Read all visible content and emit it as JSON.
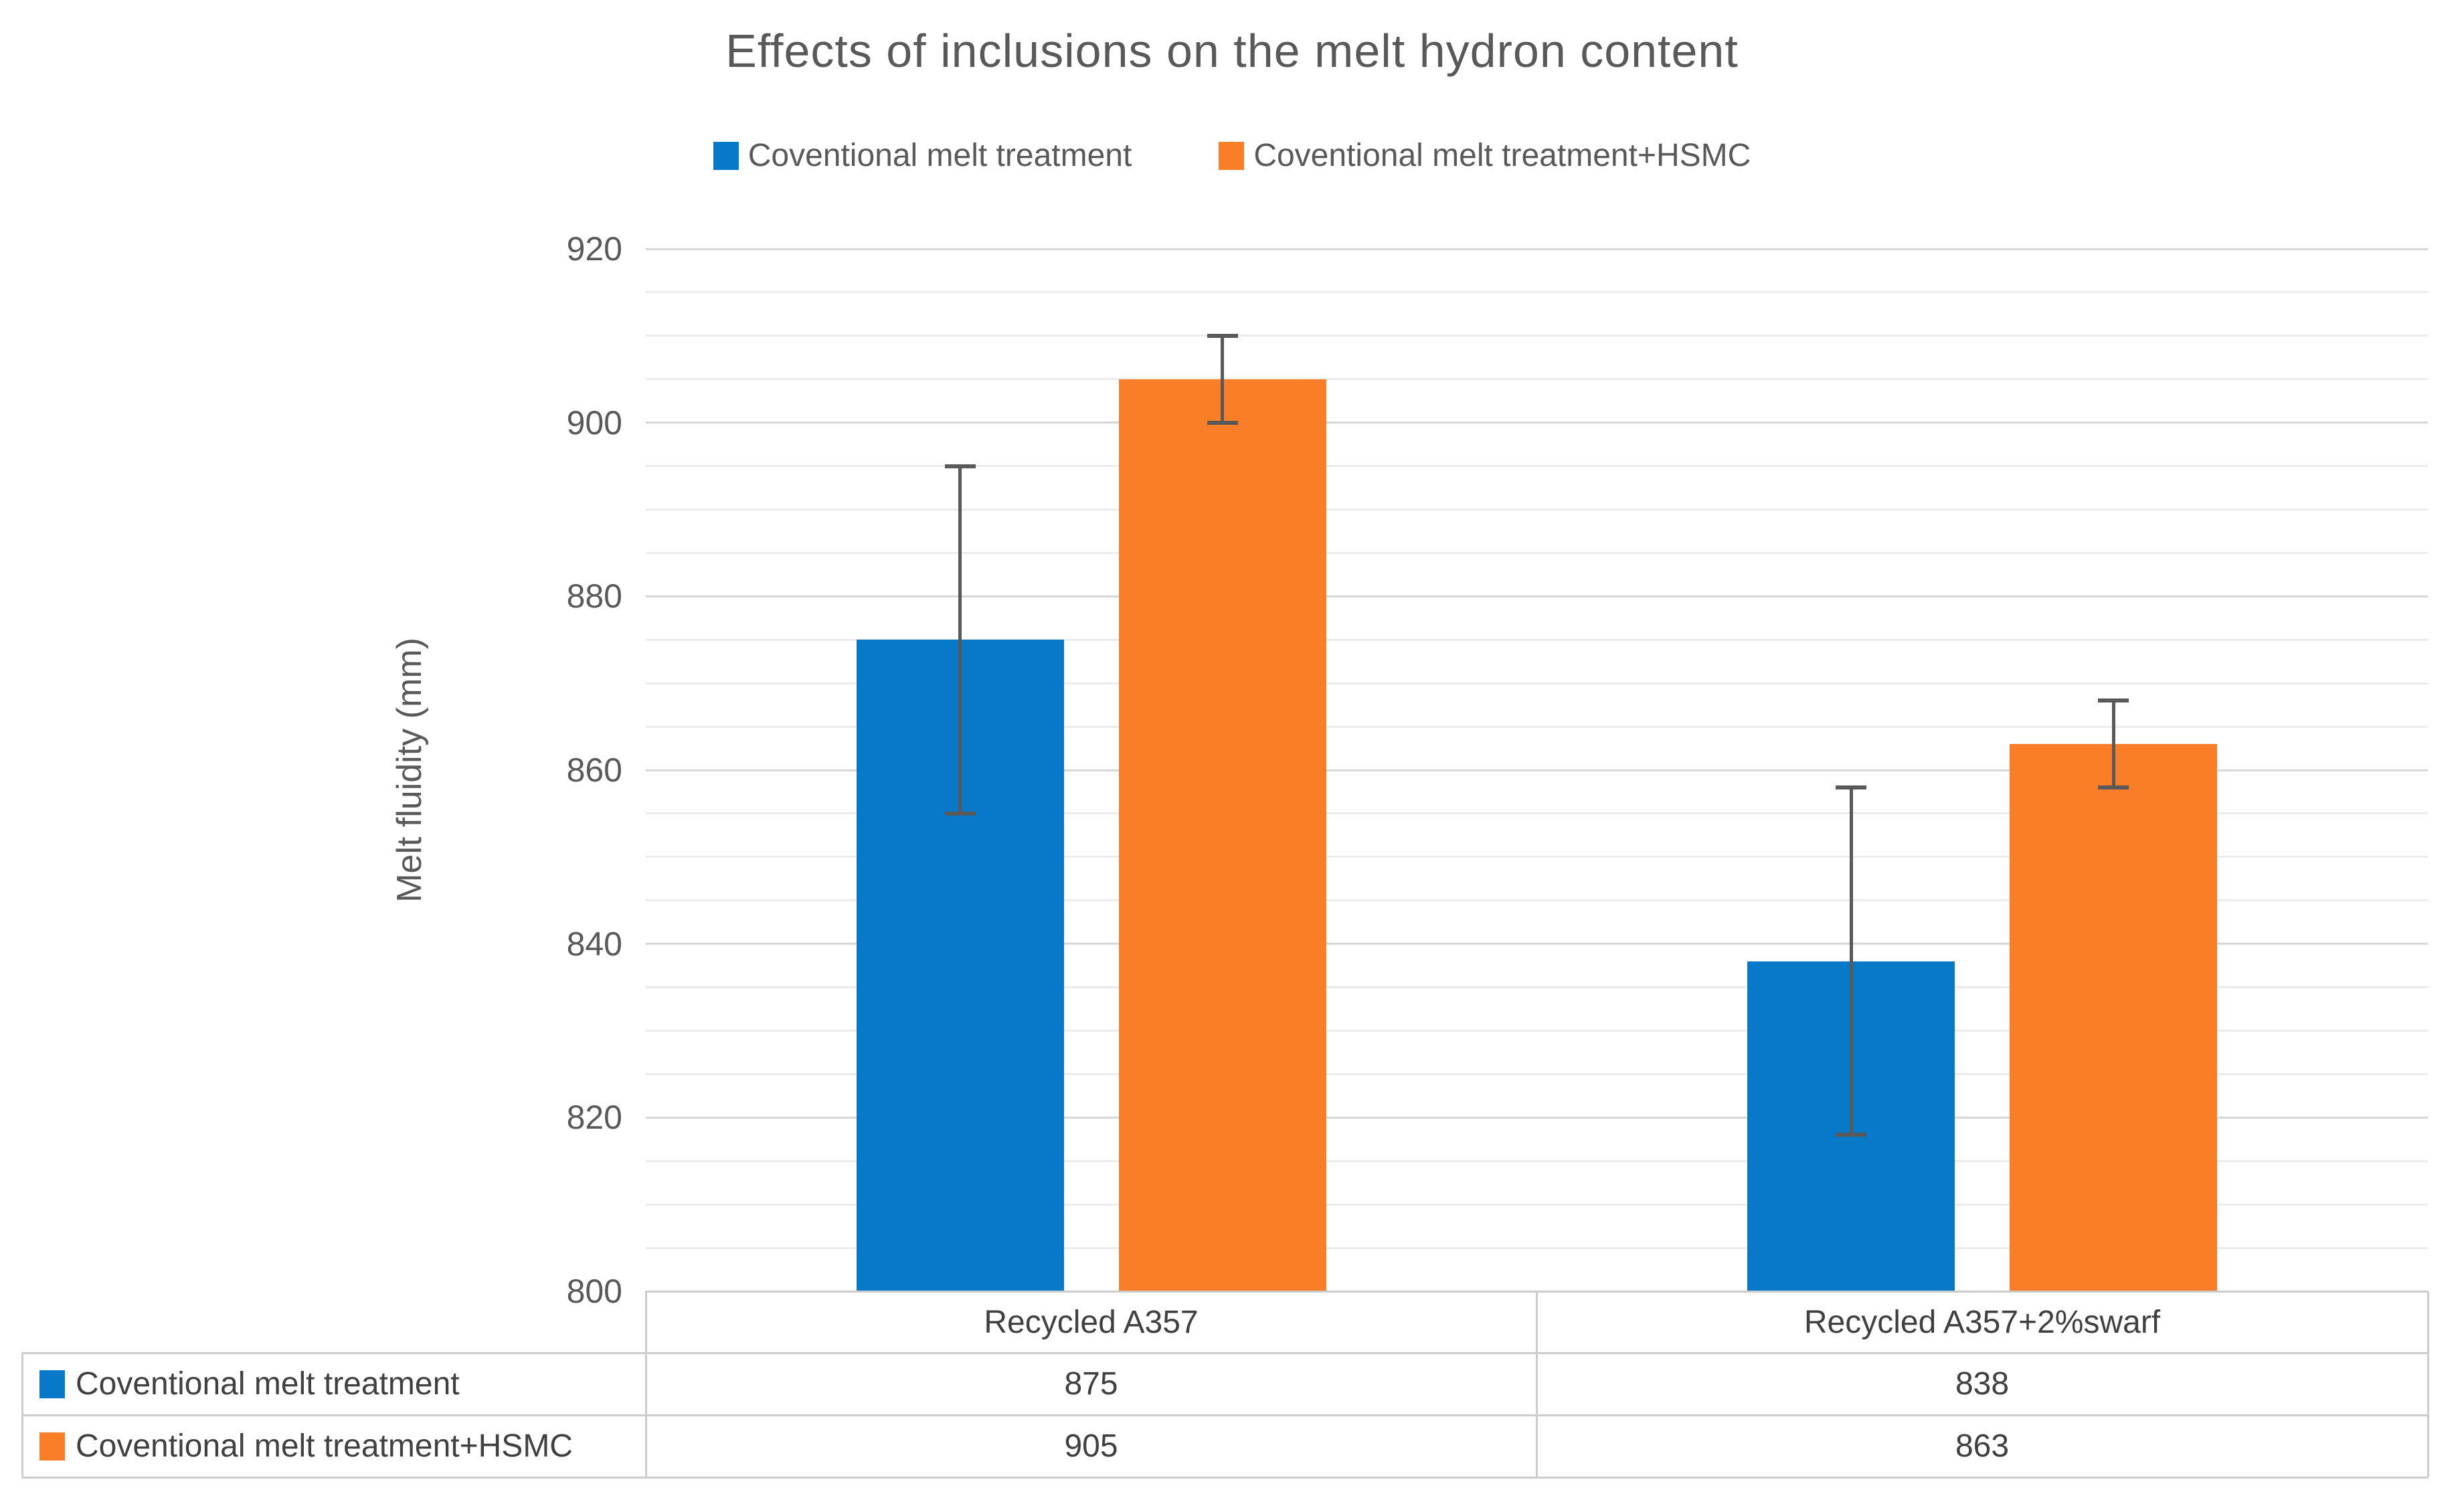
{
  "colors": {
    "series1": "#0878C8",
    "series2": "#FA7D28",
    "title_text": "#595959",
    "axis_text": "#595959",
    "table_text": "#404040",
    "grid_major": "#D6D6D6",
    "grid_minor": "#ECECEC",
    "error_bar": "#595959",
    "table_border": "#CCCCCC"
  },
  "chart_data": {
    "type": "bar",
    "title": "Effects of inclusions on the melt hydron content",
    "ylabel": "Melt fluidity (mm)",
    "xlabel": "",
    "ylim": [
      800,
      920
    ],
    "ytick_step": 20,
    "yminor_step": 5,
    "yticks": [
      920,
      900,
      880,
      860,
      840,
      820,
      800
    ],
    "grid": true,
    "legend_position": "top",
    "data_table_shown": true,
    "categories": [
      "Recycled A357",
      "Recycled A357+2%swarf"
    ],
    "series": [
      {
        "name": "Coventional melt treatment",
        "color": "#0878C8",
        "values": [
          875,
          838
        ],
        "error": 20
      },
      {
        "name": "Coventional melt treatment+HSMC",
        "color": "#FA7D28",
        "values": [
          905,
          863
        ],
        "error": 5
      }
    ]
  }
}
